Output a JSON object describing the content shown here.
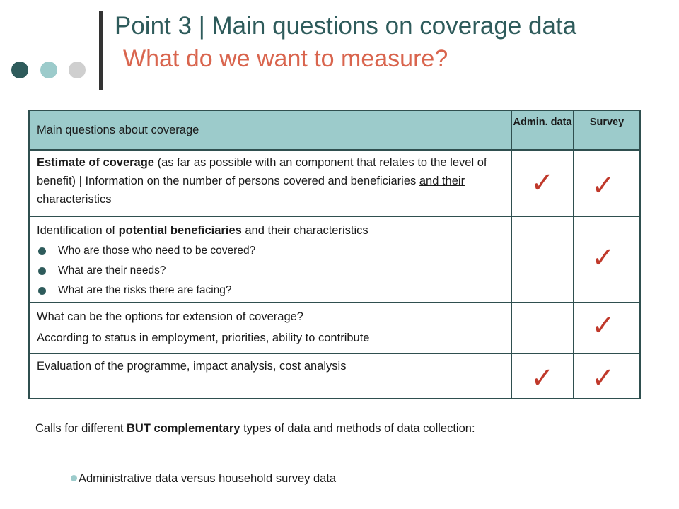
{
  "header": {
    "title": "Point 3 | Main questions on coverage data",
    "subtitle": "What do we want to measure?",
    "dot_colors": [
      "#2e5b5b",
      "#9ccbcb",
      "#cfcfcf"
    ]
  },
  "table": {
    "header_question": "Main questions about coverage",
    "col_admin": "Admin. data",
    "col_survey": "Survey",
    "check_symbol": "✓",
    "check_color": "#c0392b",
    "rows": [
      {
        "bold": "Estimate of coverage",
        "text1": " (as far as possible with an component that relates to the level of benefit)  |    Information on the number of persons covered and beneficiaries ",
        "underlined": "and  their characteristics",
        "admin": true,
        "survey": true
      },
      {
        "text_pre": "Identification of ",
        "bold": "potential beneficiaries",
        "text_post": " and their characteristics",
        "bullets": [
          "Who are those who need to be covered?",
          "What are their needs?",
          "What are the risks there are facing?"
        ],
        "admin": false,
        "survey": true
      },
      {
        "line1": "What can be the options for extension of coverage?",
        "line2": "According to status in employment, priorities, ability to contribute",
        "admin": false,
        "survey": true
      },
      {
        "line1": "Evaluation of the programme, impact analysis, cost analysis",
        "admin": true,
        "survey": true
      }
    ]
  },
  "footer": {
    "text_pre": "Calls for different ",
    "bold": "BUT complementary",
    "text_post": " types of data and methods of data collection:",
    "bullet": "Administrative data versus household survey data"
  }
}
